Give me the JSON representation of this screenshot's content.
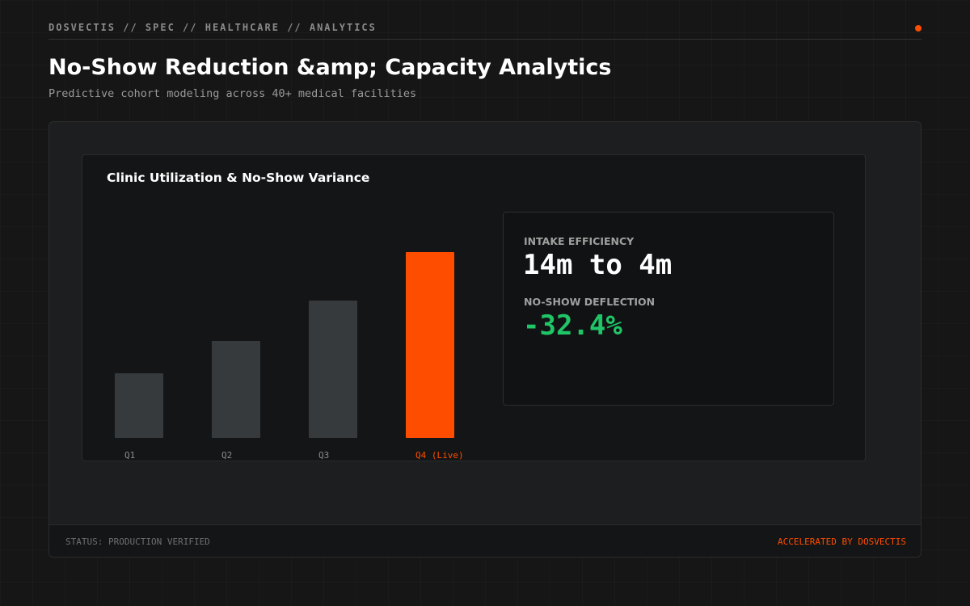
{
  "header": {
    "breadcrumb": "DOSVECTIS // SPEC // HEALTHCARE // ANALYTICS",
    "title": "No-Show Reduction &amp; Capacity Analytics",
    "subtitle": "Predictive cohort modeling across 40+ medical facilities"
  },
  "chart_data": {
    "type": "bar",
    "title": "Clinic Utilization & No-Show Variance",
    "categories": [
      "Q1",
      "Q2",
      "Q3",
      "Q4 (Live)"
    ],
    "values": [
      80,
      120,
      170,
      230
    ],
    "ylim": [
      0,
      250
    ],
    "highlight_index": 3,
    "colors": {
      "bar": "#363a3c",
      "highlight": "#ff4d00",
      "tick": "#8a8a8a"
    },
    "grid": false,
    "legend": "none"
  },
  "metrics": [
    {
      "label": "INTAKE EFFICIENCY",
      "value": "14m to 4m",
      "color": "#ffffff"
    },
    {
      "label": "NO-SHOW DEFLECTION",
      "value": "-32.4%",
      "color": "#1fc567"
    }
  ],
  "footer": {
    "status": "STATUS: PRODUCTION VERIFIED",
    "credit": "ACCELERATED BY DOSVECTIS"
  },
  "theme": {
    "accent": "#ff4d00",
    "positive": "#1fc567",
    "background": "#161616"
  }
}
